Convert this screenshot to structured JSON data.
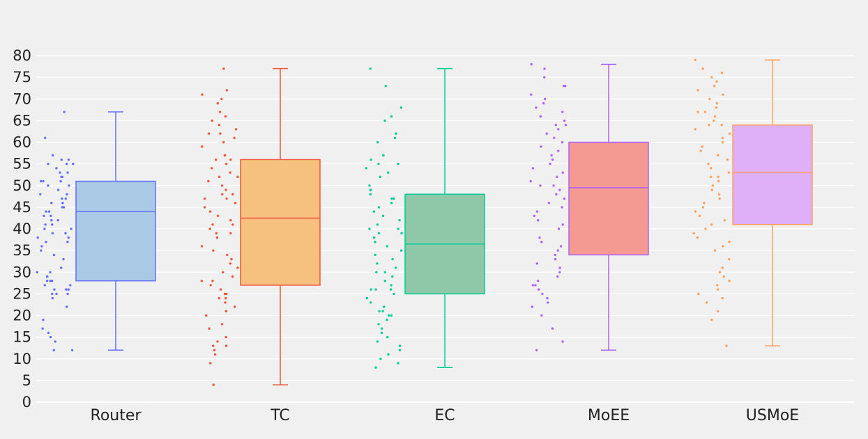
{
  "chart_data": {
    "type": "box",
    "title": "",
    "xlabel": "",
    "ylabel": "",
    "ylim": [
      0,
      80
    ],
    "yticks": [
      0,
      5,
      10,
      15,
      20,
      25,
      30,
      35,
      40,
      45,
      50,
      55,
      60,
      65,
      70,
      75,
      80
    ],
    "grid": true,
    "categories": [
      "Router",
      "TC",
      "EC",
      "MoEE",
      "USMoE"
    ],
    "series": [
      {
        "name": "Router",
        "min": 12,
        "q1": 28,
        "median": 44,
        "q3": 51,
        "max": 67,
        "stroke": "#636efa",
        "fill": "#a9c9e4",
        "points": [
          51,
          50,
          53,
          55,
          56,
          52,
          51,
          50,
          46,
          48,
          45,
          44,
          47,
          43,
          42,
          41,
          40,
          39,
          38,
          37,
          35,
          34,
          33,
          30,
          29,
          28,
          27,
          26,
          25,
          24,
          22,
          19,
          17,
          16,
          15,
          14,
          12,
          12,
          67,
          61,
          57,
          56,
          55,
          55,
          54,
          53,
          52,
          51,
          49,
          48,
          47,
          46,
          45,
          44,
          43,
          42,
          41,
          40,
          39,
          38,
          37,
          36,
          31,
          30,
          29,
          28,
          28,
          27,
          26,
          26,
          25,
          25
        ]
      },
      {
        "name": "TC",
        "min": 4,
        "q1": 27,
        "median": 42.5,
        "q3": 56,
        "max": 77,
        "stroke": "#ef553b",
        "fill": "#f6c07f",
        "points": [
          77,
          72,
          71,
          70,
          69,
          67,
          66,
          65,
          64,
          63,
          62,
          62,
          61,
          60,
          59,
          57,
          57,
          56,
          56,
          55,
          54,
          53,
          52,
          52,
          51,
          50,
          49,
          48,
          48,
          47,
          47,
          46,
          45,
          44,
          43,
          42,
          41,
          41,
          40,
          39,
          39,
          38,
          36,
          35,
          34,
          33,
          32,
          31,
          30,
          29,
          28,
          28,
          27,
          26,
          25,
          25,
          24,
          24,
          23,
          22,
          21,
          20,
          18,
          17,
          15,
          14,
          13,
          13,
          12,
          11,
          9,
          4
        ]
      },
      {
        "name": "EC",
        "min": 8,
        "q1": 25,
        "median": 36.5,
        "q3": 48,
        "max": 77,
        "stroke": "#00cc96",
        "fill": "#8fc8a9",
        "points": [
          77,
          73,
          68,
          66,
          65,
          62,
          61,
          60,
          57,
          57,
          56,
          55,
          55,
          54,
          53,
          52,
          50,
          49,
          49,
          48,
          47,
          47,
          46,
          45,
          44,
          43,
          42,
          41,
          40,
          40,
          39,
          39,
          38,
          37,
          36,
          35,
          34,
          33,
          32,
          31,
          30,
          30,
          29,
          28,
          27,
          26,
          26,
          26,
          25,
          24,
          23,
          22,
          21,
          21,
          20,
          20,
          19,
          18,
          17,
          16,
          15,
          14,
          13,
          12,
          11,
          10,
          9,
          8
        ]
      },
      {
        "name": "MoEE",
        "min": 12,
        "q1": 34,
        "median": 49.5,
        "q3": 60,
        "max": 78,
        "stroke": "#ab63fa",
        "fill": "#f59a93",
        "points": [
          78,
          77,
          75,
          73,
          73,
          71,
          70,
          69,
          68,
          67,
          66,
          65,
          64,
          64,
          63,
          62,
          61,
          60,
          59,
          58,
          57,
          56,
          55,
          54,
          53,
          52,
          51,
          50,
          50,
          49,
          48,
          47,
          46,
          45,
          44,
          43,
          42,
          41,
          40,
          38,
          37,
          36,
          35,
          34,
          33,
          32,
          31,
          30,
          29,
          28,
          27,
          27,
          26,
          25,
          24,
          23,
          22,
          20,
          17,
          14,
          12
        ]
      },
      {
        "name": "USMoE",
        "min": 13,
        "q1": 41,
        "median": 53,
        "q3": 64,
        "max": 79,
        "stroke": "#ffa15a",
        "fill": "#dfb0f7",
        "points": [
          79,
          77,
          76,
          75,
          74,
          73,
          72,
          71,
          70,
          69,
          68,
          67,
          67,
          66,
          65,
          64,
          64,
          63,
          62,
          61,
          60,
          59,
          58,
          57,
          56,
          55,
          54,
          53,
          52,
          52,
          51,
          50,
          49,
          48,
          47,
          46,
          45,
          44,
          43,
          42,
          41,
          40,
          39,
          38,
          37,
          36,
          35,
          33,
          31,
          30,
          29,
          28,
          27,
          26,
          25,
          24,
          23,
          21,
          19,
          13
        ]
      }
    ]
  }
}
